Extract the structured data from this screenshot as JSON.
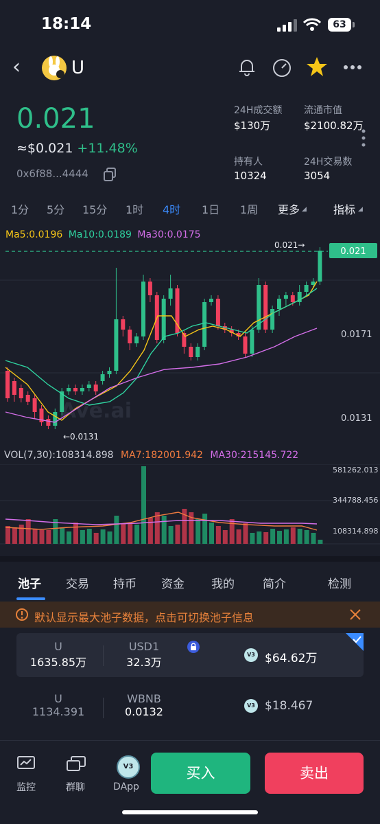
{
  "status_bar": {
    "time": "18:14",
    "battery": "63"
  },
  "header": {
    "token": "U"
  },
  "price": {
    "value": "0.021",
    "usd": "≈$0.021",
    "change": "+11.48%",
    "address": "0x6f88...4444"
  },
  "stats": [
    {
      "label": "24H成交额",
      "value": "$130万"
    },
    {
      "label": "流通市值",
      "value": "$2100.82万"
    },
    {
      "label": "持有人",
      "value": "10324"
    },
    {
      "label": "24H交易数",
      "value": "3054"
    }
  ],
  "periods": [
    "1分",
    "5分",
    "15分",
    "1时",
    "4时",
    "1日",
    "1周",
    "更多",
    "指标"
  ],
  "ma": {
    "ma5": "Ma5:0.0196",
    "ma10": "Ma10:0.0189",
    "ma30": "Ma30:0.0175"
  },
  "chart": {
    "price_tag": "0.021",
    "last_label": "0.021→",
    "low_label": "←0.0131",
    "y_ticks": [
      "0.0171",
      "0.0131"
    ],
    "watermark": "Ave.ai"
  },
  "volume": {
    "vol": "VOL(7,30):108314.898",
    "ma7": "MA7:182001.942",
    "ma30": "MA30:215145.722",
    "ticks": [
      "581262.013",
      "344788.456",
      "108314.898"
    ]
  },
  "tabs": [
    "池子",
    "交易",
    "持币",
    "资金",
    "我的",
    "简介",
    "检测"
  ],
  "notice": "默认显示最大池子数据，点击可切换池子信息",
  "pools": [
    {
      "token_a": "U",
      "amount_a": "1635.85万",
      "token_b": "USD1",
      "amount_b": "32.3万",
      "value": "$64.62万",
      "badge": "V3"
    },
    {
      "token_a": "U",
      "amount_a": "1134.391",
      "token_b": "WBNB",
      "amount_b": "0.0132",
      "value": "$18.467",
      "badge": "V3"
    }
  ],
  "bottom": {
    "monitor": "监控",
    "group": "群聊",
    "dapp": "DApp",
    "buy": "买入",
    "sell": "卖出"
  },
  "colors": {
    "up": "#2fbf8a",
    "down": "#f0405e",
    "accent": "#3b8cff"
  }
}
